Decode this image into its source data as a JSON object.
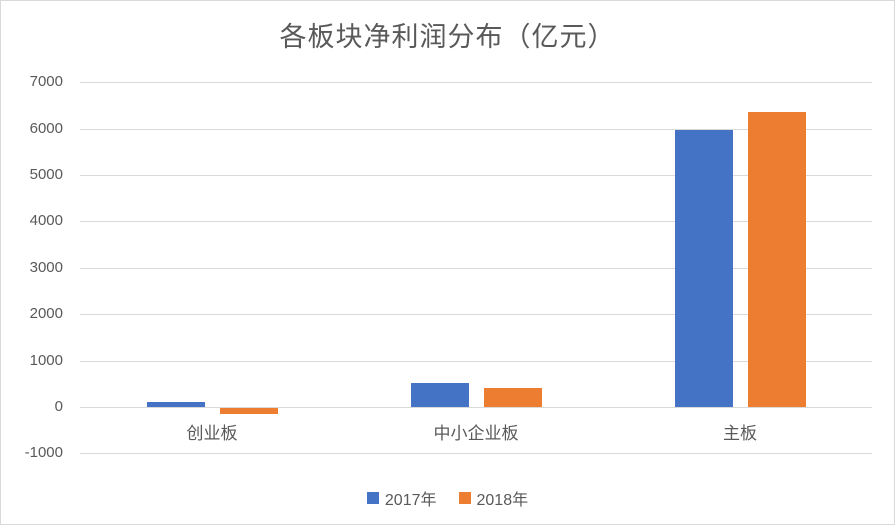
{
  "title": "各板块净利润分布（亿元）",
  "chart_data": {
    "type": "bar",
    "title": "各板块净利润分布（亿元）",
    "categories": [
      "创业板",
      "中小企业板",
      "主板"
    ],
    "series": [
      {
        "name": "2017年",
        "color": "#4472C4",
        "values": [
          110,
          510,
          5960
        ]
      },
      {
        "name": "2018年",
        "color": "#ED7D31",
        "values": [
          -140,
          420,
          6360
        ]
      }
    ],
    "xlabel": "",
    "ylabel": "",
    "ylim": [
      -1000,
      7000
    ],
    "ytick_step": 1000,
    "yticks": [
      7000,
      6000,
      5000,
      4000,
      3000,
      2000,
      1000,
      0,
      -1000
    ],
    "grid": true,
    "legend_position": "bottom"
  },
  "colors": {
    "bar_2017": "#4472C4",
    "bar_2018": "#ED7D31",
    "gridline": "#D9D9D9",
    "text": "#595959",
    "background": "#FFFFFF",
    "frame_border": "#D9D9D9"
  }
}
